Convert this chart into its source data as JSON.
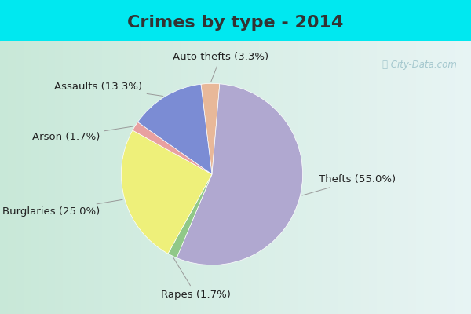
{
  "title": "Crimes by type - 2014",
  "slices": [
    {
      "label": "Auto thefts",
      "pct": 3.3,
      "color": "#e8b899"
    },
    {
      "label": "Thefts",
      "pct": 55.0,
      "color": "#b0a8d0"
    },
    {
      "label": "Rapes",
      "pct": 1.7,
      "color": "#90c888"
    },
    {
      "label": "Burglaries",
      "pct": 25.0,
      "color": "#eef07a"
    },
    {
      "label": "Arson",
      "pct": 1.7,
      "color": "#e8a0a0"
    },
    {
      "label": "Assaults",
      "pct": 13.3,
      "color": "#7b8cd4"
    }
  ],
  "background_top": "#00e8f0",
  "background_main_left": "#c8e8d8",
  "background_main_right": "#e8f4f4",
  "title_fontsize": 16,
  "label_fontsize": 9.5,
  "watermark": "ⓘ City-Data.com",
  "startangle": 97,
  "title_color": "#333333"
}
